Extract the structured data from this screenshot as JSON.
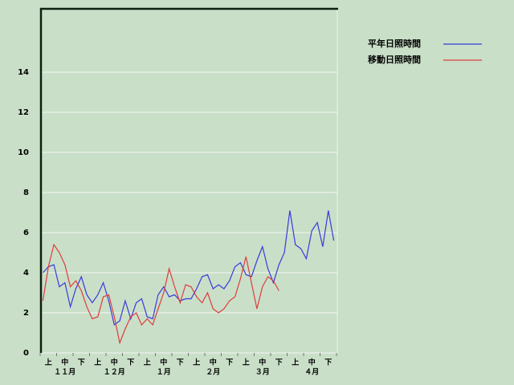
{
  "chart_data": {
    "type": "line",
    "categories": [
      null,
      "上",
      null,
      null,
      "中",
      null,
      null,
      "下",
      null,
      null,
      "上",
      null,
      null,
      "中",
      null,
      null,
      "下",
      null,
      null,
      "上",
      null,
      null,
      "中",
      null,
      null,
      "下",
      null,
      null,
      "上",
      null,
      null,
      "中",
      null,
      null,
      "下",
      null,
      null,
      "上",
      null,
      null,
      "中",
      null,
      null,
      "下",
      null,
      null,
      "上",
      null,
      null,
      "中",
      null,
      null,
      "下",
      null
    ],
    "months": [
      "１１月",
      "１２月",
      "１月",
      "２月",
      "３月",
      "４月"
    ],
    "series": [
      {
        "name": "平年日照時間",
        "color": "#3a3adc",
        "values": [
          4.0,
          4.3,
          4.4,
          3.3,
          3.5,
          2.3,
          3.2,
          3.8,
          2.9,
          2.5,
          2.9,
          3.5,
          2.6,
          1.4,
          1.6,
          2.6,
          1.7,
          2.5,
          2.7,
          1.8,
          1.7,
          2.9,
          3.3,
          2.8,
          2.9,
          2.6,
          2.7,
          2.7,
          3.2,
          3.8,
          3.9,
          3.2,
          3.4,
          3.2,
          3.6,
          4.3,
          4.5,
          3.9,
          3.8,
          4.6,
          5.3,
          4.2,
          3.5,
          4.4,
          5.0,
          7.1,
          5.4,
          5.2,
          4.7,
          6.1,
          6.5,
          5.3,
          7.1,
          5.6
        ]
      },
      {
        "name": "移動日照時間",
        "color": "#e03c3c",
        "values": [
          2.6,
          4.3,
          5.4,
          5.0,
          4.4,
          3.3,
          3.6,
          3.1,
          2.3,
          1.7,
          1.8,
          2.8,
          2.9,
          1.8,
          0.5,
          1.2,
          1.8,
          2.0,
          1.4,
          1.7,
          1.4,
          2.2,
          3.0,
          4.2,
          3.3,
          2.5,
          3.4,
          3.3,
          2.8,
          2.5,
          3.0,
          2.2,
          2.0,
          2.2,
          2.6,
          2.8,
          3.7,
          4.8,
          3.5,
          2.2,
          3.3,
          3.8,
          3.6,
          3.1,
          null,
          null,
          null,
          null,
          null,
          null,
          null,
          null,
          null,
          null
        ]
      }
    ],
    "ylim": [
      0,
      17.2
    ],
    "yticks": [
      0,
      2,
      4,
      6,
      8,
      10,
      12,
      14
    ],
    "grid": true,
    "legend": "top-right"
  }
}
